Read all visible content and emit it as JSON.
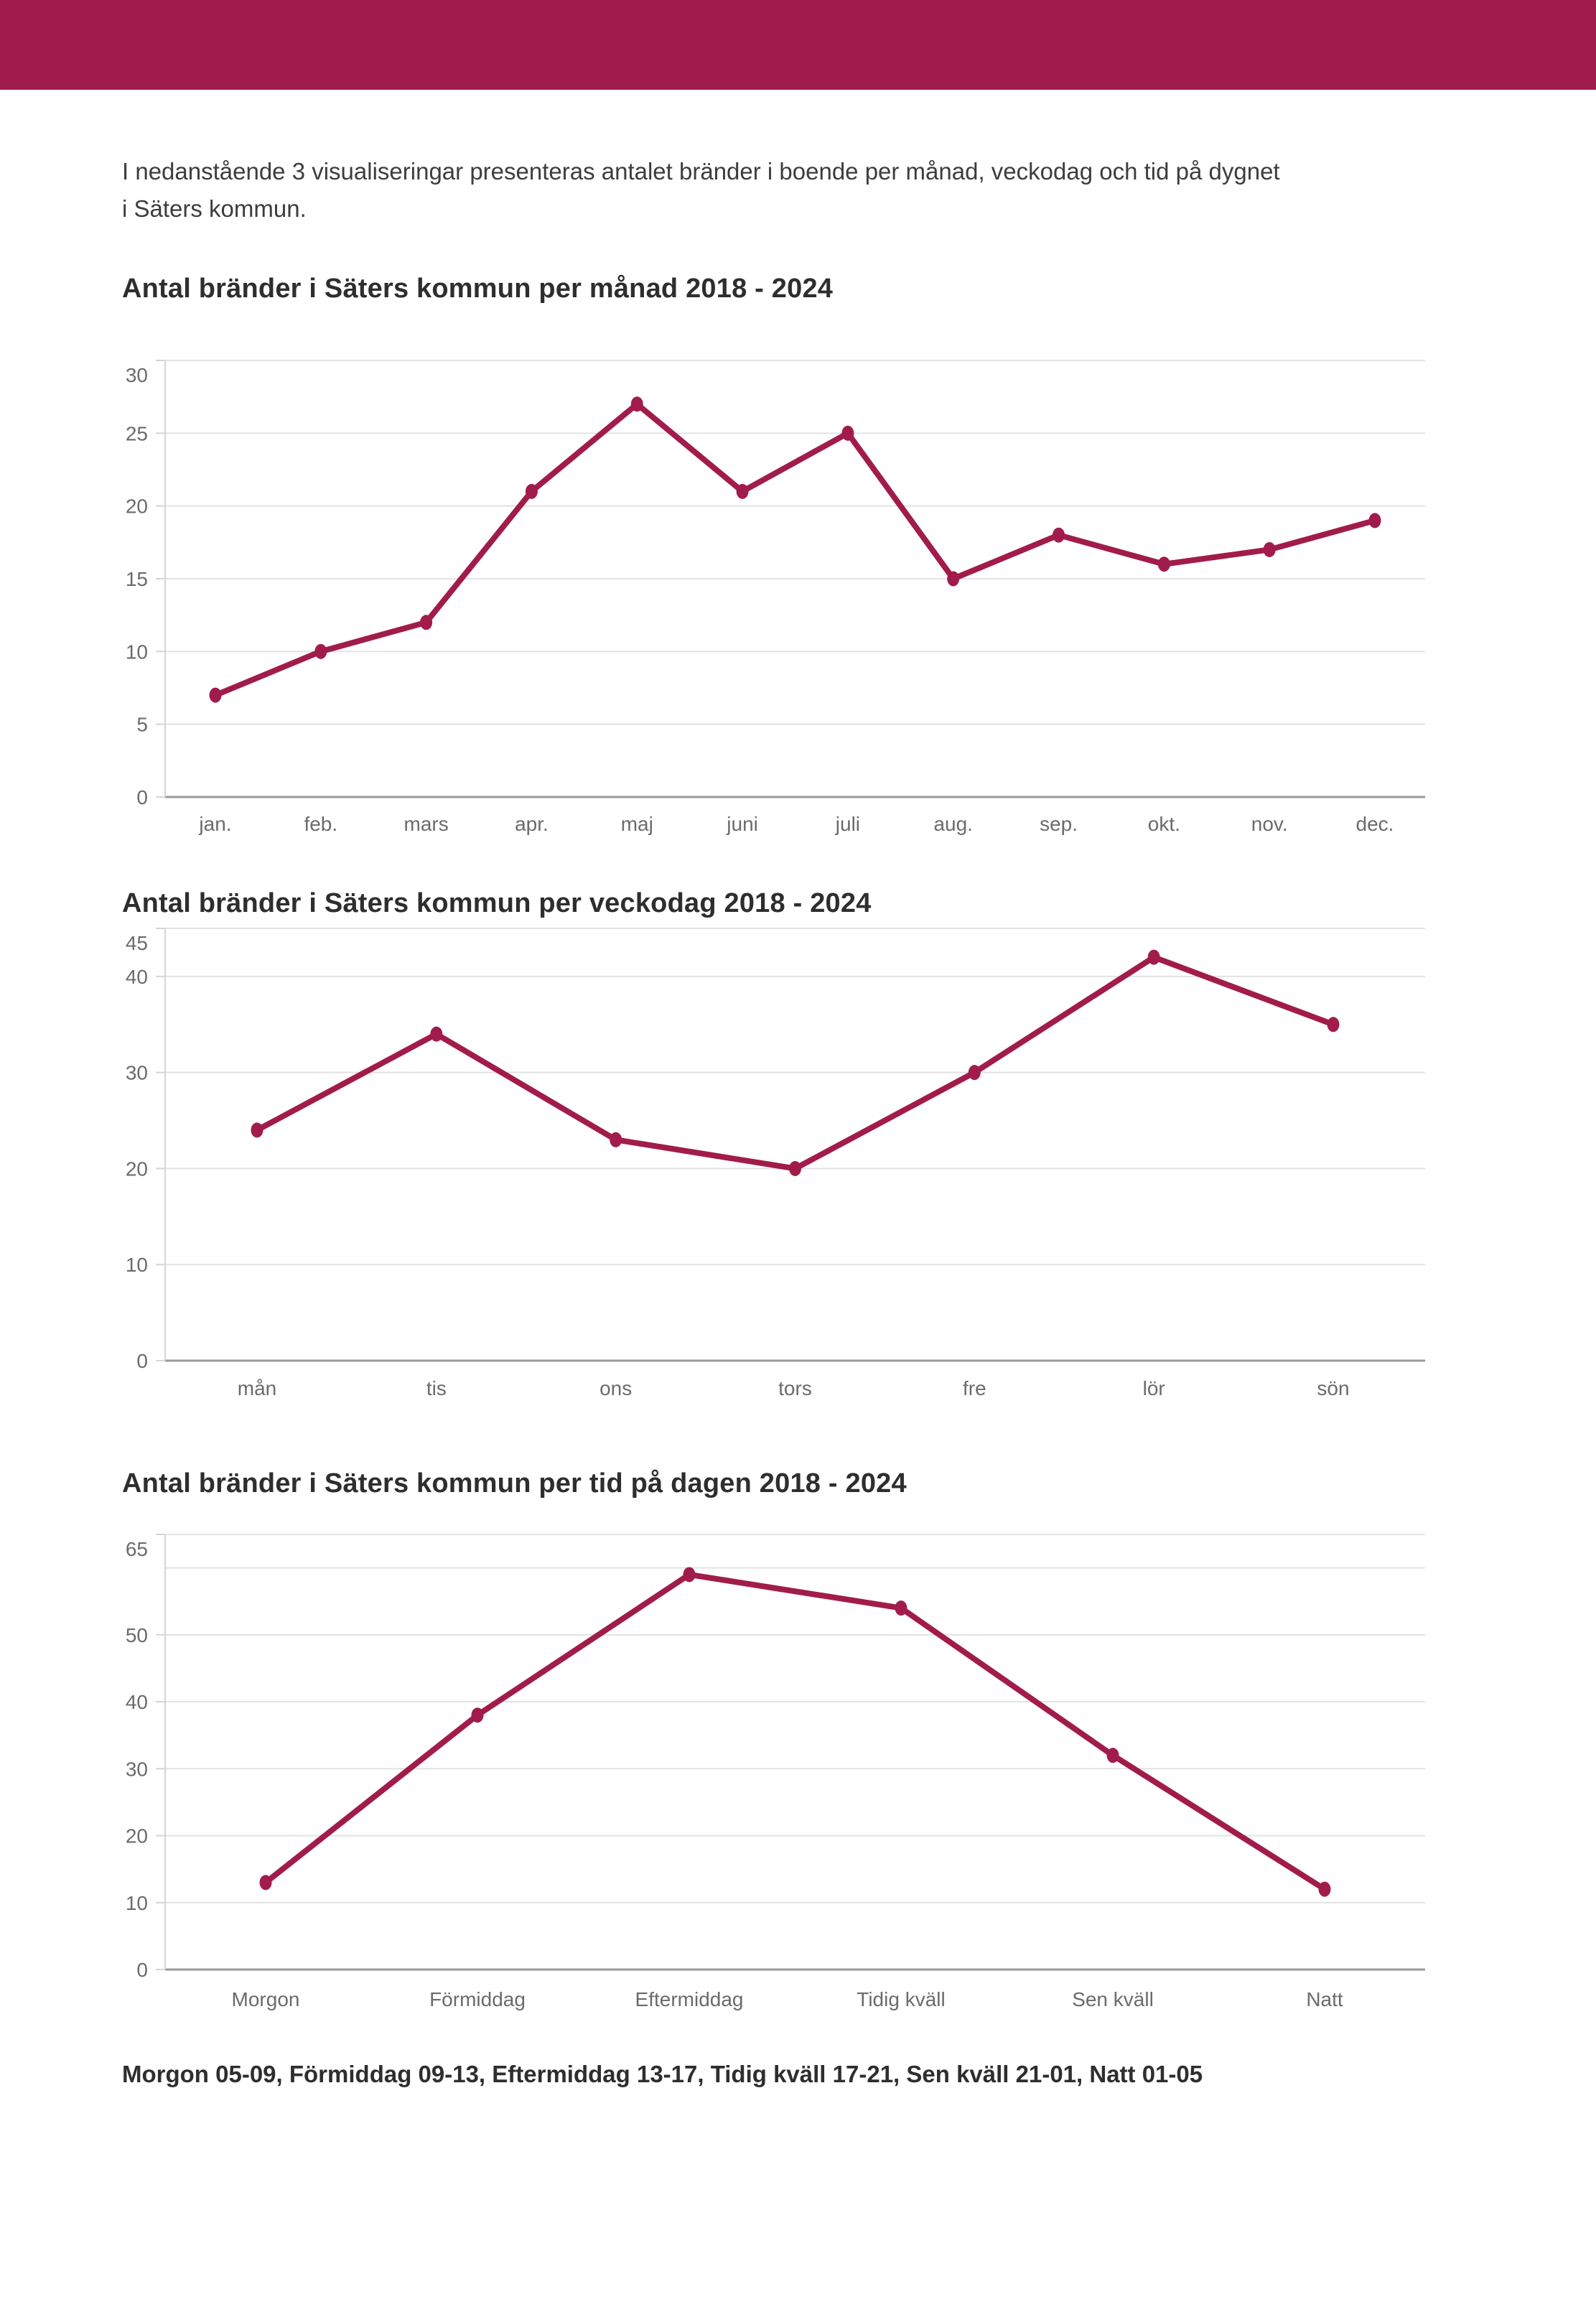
{
  "page": {
    "intro_lines": [
      "I nedanstående 3 visualiseringar presenteras antalet bränder i boende per månad, veckodag och tid på dygnet",
      "i Säters kommun."
    ],
    "footer_note": "Morgon 05-09, Förmiddag 09-13, Eftermiddag 13-17, Tidig kväll 17-21, Sen kväll 21-01, Natt 01-05"
  },
  "colors": {
    "accent": "#A11C4B",
    "header_bar": "#A11C4B",
    "gridline": "#E3E3E3",
    "axis_line": "#9A9A9A",
    "left_axis_line": "#D5D5D5",
    "tick_text": "#6B6B6B",
    "heading_text": "#2E2E2E",
    "body_text": "#3D3D3D"
  },
  "chart_data": [
    {
      "type": "line",
      "title": "Antal bränder i Säters kommun per månad 2018 - 2024",
      "categories": [
        "jan.",
        "feb.",
        "mars",
        "apr.",
        "maj",
        "juni",
        "juli",
        "aug.",
        "sep.",
        "okt.",
        "nov.",
        "dec."
      ],
      "values": [
        7,
        10,
        12,
        21,
        27,
        21,
        25,
        15,
        18,
        16,
        17,
        19
      ],
      "xlabel": "",
      "ylabel": "",
      "ylim": [
        0,
        30
      ],
      "gridlines": [
        0,
        5,
        10,
        15,
        20,
        25,
        30
      ],
      "yticks_labeled": [
        0,
        5,
        10,
        15,
        20,
        25,
        30
      ],
      "grid": "on",
      "legend": "none"
    },
    {
      "type": "line",
      "title": "Antal bränder i Säters kommun per veckodag 2018 - 2024",
      "categories": [
        "mån",
        "tis",
        "ons",
        "tors",
        "fre",
        "lör",
        "sön"
      ],
      "values": [
        24,
        34,
        23,
        20,
        30,
        42,
        35
      ],
      "xlabel": "",
      "ylabel": "",
      "ylim": [
        0,
        45
      ],
      "gridlines": [
        0,
        10,
        20,
        30,
        40,
        45
      ],
      "yticks_labeled": [
        0,
        10,
        20,
        30,
        40,
        45
      ],
      "grid": "on",
      "legend": "none"
    },
    {
      "type": "line",
      "title": "Antal bränder i Säters kommun per tid på dagen 2018 - 2024",
      "categories": [
        "Morgon",
        "Förmiddag",
        "Eftermiddag",
        "Tidig kväll",
        "Sen kväll",
        "Natt"
      ],
      "values": [
        13,
        38,
        59,
        54,
        32,
        12
      ],
      "xlabel": "",
      "ylabel": "",
      "ylim": [
        0,
        65
      ],
      "gridlines": [
        0,
        10,
        20,
        30,
        40,
        50,
        60,
        65
      ],
      "yticks_labeled": [
        0,
        10,
        20,
        30,
        40,
        50,
        65
      ],
      "grid": "on",
      "legend": "none"
    }
  ]
}
